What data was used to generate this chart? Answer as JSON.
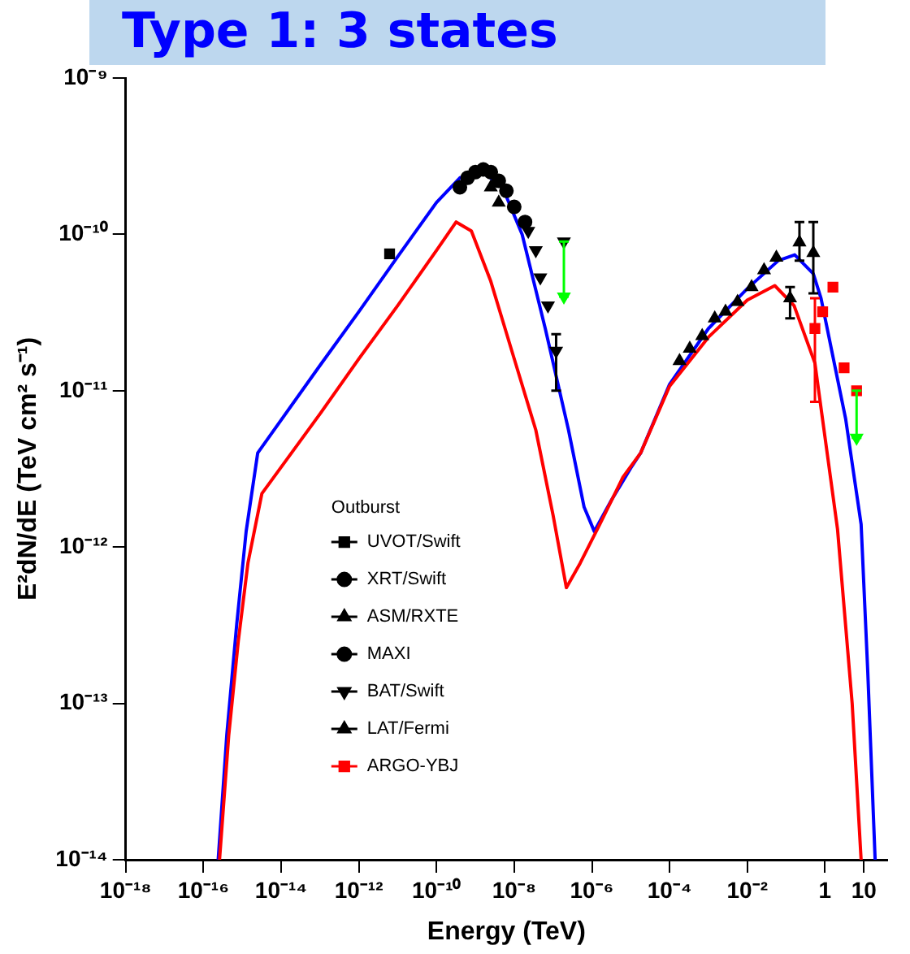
{
  "chart_data": {
    "type": "scatter",
    "title": "Type 1: 3 states",
    "xlabel": "Energy (TeV)",
    "ylabel": "E²dN/dE (TeV cm² s⁻¹)",
    "legend_title": "Outburst",
    "legend": "center",
    "grid": false,
    "log": "xy",
    "xlim": [
      1e-18,
      40
    ],
    "ylim": [
      1e-14,
      1e-09
    ],
    "xticks": [
      {
        "value": 1e-18,
        "label": "10⁻¹⁸"
      },
      {
        "value": 1e-16,
        "label": "10⁻¹⁶"
      },
      {
        "value": 1e-14,
        "label": "10⁻¹⁴"
      },
      {
        "value": 1e-12,
        "label": "10⁻¹²"
      },
      {
        "value": 1e-10,
        "label": "10⁻¹⁰"
      },
      {
        "value": 1e-08,
        "label": "10⁻⁸"
      },
      {
        "value": 1e-06,
        "label": "10⁻⁶"
      },
      {
        "value": 0.0001,
        "label": "10⁻⁴"
      },
      {
        "value": 0.01,
        "label": "10⁻²"
      },
      1,
      10
    ],
    "yticks": [
      {
        "value": 1e-14,
        "label": "10⁻¹⁴"
      },
      {
        "value": 1e-13,
        "label": "10⁻¹³"
      },
      {
        "value": 1e-12,
        "label": "10⁻¹²"
      },
      {
        "value": 1e-11,
        "label": "10⁻¹¹"
      },
      {
        "value": 1e-10,
        "label": "10⁻¹⁰"
      },
      {
        "value": 1e-09,
        "label": "10⁻⁹"
      }
    ],
    "series": [
      {
        "type": "line",
        "color": "#ff0000",
        "x": [
          2.6e-16,
          4.5e-16,
          7.9e-16,
          1.4e-15,
          3.2e-15,
          1e-13,
          1e-12,
          1e-11,
          1e-10,
          3.2e-10,
          7.9e-10,
          2.5e-09,
          1e-08,
          3.6e-08,
          1e-07,
          2.2e-07,
          5e-07,
          1.6e-06,
          6.3e-06,
          1.8e-05,
          0.0001,
          0.001,
          0.01,
          0.051,
          0.16,
          0.55,
          2.1,
          5,
          8.5
        ],
        "values": [
          1e-14,
          6.3e-14,
          2.5e-13,
          7.9e-13,
          2.2e-12,
          7.1e-12,
          1.6e-11,
          3.5e-11,
          7.9e-11,
          1.2e-10,
          1.05e-10,
          5e-11,
          1.6e-11,
          5.6e-12,
          1.6e-12,
          5.5e-13,
          7.9e-13,
          1.4e-12,
          2.8e-12,
          4e-12,
          1.07e-11,
          2.2e-11,
          3.8e-11,
          4.7e-11,
          3.5e-11,
          1.5e-11,
          1.3e-12,
          1e-13,
          1e-14
        ]
      },
      {
        "type": "line",
        "color": "#0000ff",
        "x": [
          2.4e-16,
          4e-16,
          7.2e-16,
          1.26e-15,
          2.5e-15,
          1e-13,
          1e-12,
          1e-11,
          1e-10,
          4e-10,
          1.6e-09,
          5e-09,
          1.6e-08,
          6.3e-08,
          2.5e-07,
          6.3e-07,
          1.15e-06,
          3.2e-06,
          1e-05,
          1.8e-05,
          0.0001,
          0.001,
          0.01,
          0.063,
          0.166,
          0.5,
          0.79,
          3.4,
          8.5,
          12.6,
          19.5
        ],
        "values": [
          1e-14,
          6.3e-14,
          3.2e-13,
          1.26e-12,
          4e-12,
          1.45e-11,
          3.2e-11,
          7.2e-11,
          1.6e-10,
          2.3e-10,
          2.5e-10,
          2e-10,
          1e-10,
          2.5e-11,
          5.6e-12,
          1.8e-12,
          1.26e-12,
          2e-12,
          3.2e-12,
          4e-12,
          1.1e-11,
          2.5e-11,
          4.5e-11,
          6.8e-11,
          7.4e-11,
          5.6e-11,
          3.9e-11,
          6.6e-12,
          1.4e-12,
          1.6e-13,
          1e-14
        ]
      },
      {
        "name": "UVOT/Swift",
        "color": "#000000",
        "marker": "square",
        "x": [
          6.2e-12
        ],
        "values": [
          7.5e-11
        ]
      },
      {
        "name": "XRT/Swift",
        "color": "#000000",
        "marker": "circle",
        "x": [
          4e-10,
          6.3e-10,
          1e-09,
          1.6e-09,
          2.5e-09,
          4e-09,
          6.3e-09,
          1e-08
        ],
        "values": [
          2e-10,
          2.3e-10,
          2.5e-10,
          2.6e-10,
          2.5e-10,
          2.2e-10,
          1.9e-10,
          1.5e-10
        ]
      },
      {
        "name": "ASM/RXTE",
        "color": "#000000",
        "marker": "triangle",
        "x": [
          2.5e-09,
          4e-09
        ],
        "values": [
          2e-10,
          1.6e-10
        ]
      },
      {
        "name": "MAXI",
        "color": "#000000",
        "marker": "circle",
        "x": [
          1.9e-08
        ],
        "values": [
          1.2e-10
        ]
      },
      {
        "name": "BAT/Swift",
        "color": "#000000",
        "marker": "triangle-down",
        "x": [
          2.3e-08,
          3.6e-08,
          4.7e-08,
          7.4e-08,
          1.2e-07,
          1.9e-07
        ],
        "values": [
          1.05e-10,
          7.9e-11,
          5.3e-11,
          3.5e-11,
          1.8e-11,
          9e-11
        ],
        "errors": [
          null,
          null,
          null,
          null,
          [
            1e-11,
            2.3e-11
          ],
          null
        ]
      },
      {
        "name": "LAT/Fermi",
        "color": "#000000",
        "marker": "triangle",
        "x": [
          0.00018,
          0.00033,
          0.00069,
          0.00145,
          0.00275,
          0.0056,
          0.0129,
          0.027,
          0.056,
          0.126,
          0.22,
          0.5
        ],
        "values": [
          1.55e-11,
          1.86e-11,
          2.24e-11,
          2.9e-11,
          3.2e-11,
          3.7e-11,
          4.6e-11,
          5.9e-11,
          7.1e-11,
          3.9e-11,
          8.9e-11,
          7.6e-11
        ],
        "errors": [
          null,
          null,
          null,
          null,
          null,
          null,
          null,
          null,
          null,
          [
            2.9e-11,
            4.6e-11
          ],
          [
            6.8e-11,
            1.2e-10
          ],
          [
            4.2e-11,
            1.2e-10
          ]
        ]
      },
      {
        "name": "ARGO-YBJ",
        "color": "#ff0000",
        "marker": "square",
        "x": [
          0.55,
          0.87,
          1.6,
          3.1,
          6.5
        ],
        "values": [
          2.5e-11,
          3.2e-11,
          4.6e-11,
          1.4e-11,
          1e-11
        ],
        "errors": [
          [
            8.5e-12,
            3.9e-11
          ],
          null,
          null,
          null,
          null
        ]
      },
      {
        "color": "#00ff00",
        "marker": "triangle-down",
        "x": [
          1.9e-07,
          6.5
        ],
        "values": [
          4e-11,
          5e-12
        ],
        "errors": [
          [
            4e-11,
            9e-11
          ],
          [
            5e-12,
            1e-11
          ]
        ]
      }
    ]
  }
}
